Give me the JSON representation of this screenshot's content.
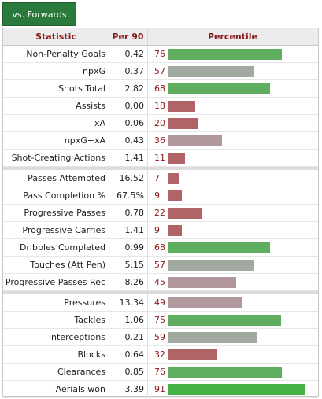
{
  "tab": {
    "label": "vs. Forwards"
  },
  "header": {
    "statistic": "Statistic",
    "per90": "Per 90",
    "percentile": "Percentile"
  },
  "colors": {
    "high": "#5fad5f",
    "mid": "#a2a9a0",
    "low": "#b06468",
    "midlow": "#b0989c"
  },
  "groups": [
    {
      "rows": [
        {
          "stat": "Non-Penalty Goals",
          "per90": "0.42",
          "pct": "76"
        },
        {
          "stat": "npxG",
          "per90": "0.37",
          "pct": "57"
        },
        {
          "stat": "Shots Total",
          "per90": "2.82",
          "pct": "68"
        },
        {
          "stat": "Assists",
          "per90": "0.00",
          "pct": "18"
        },
        {
          "stat": "xA",
          "per90": "0.06",
          "pct": "20"
        },
        {
          "stat": "npxG+xA",
          "per90": "0.43",
          "pct": "36"
        },
        {
          "stat": "Shot-Creating Actions",
          "per90": "1.41",
          "pct": "11"
        }
      ]
    },
    {
      "rows": [
        {
          "stat": "Passes Attempted",
          "per90": "16.52",
          "pct": "7"
        },
        {
          "stat": "Pass Completion %",
          "per90": "67.5%",
          "pct": "9"
        },
        {
          "stat": "Progressive Passes",
          "per90": "0.78",
          "pct": "22"
        },
        {
          "stat": "Progressive Carries",
          "per90": "1.41",
          "pct": "9"
        },
        {
          "stat": "Dribbles Completed",
          "per90": "0.99",
          "pct": "68"
        },
        {
          "stat": "Touches (Att Pen)",
          "per90": "5.15",
          "pct": "57"
        },
        {
          "stat": "Progressive Passes Rec",
          "per90": "8.26",
          "pct": "45"
        }
      ]
    },
    {
      "rows": [
        {
          "stat": "Pressures",
          "per90": "13.34",
          "pct": "49"
        },
        {
          "stat": "Tackles",
          "per90": "1.06",
          "pct": "75"
        },
        {
          "stat": "Interceptions",
          "per90": "0.21",
          "pct": "59"
        },
        {
          "stat": "Blocks",
          "per90": "0.64",
          "pct": "32"
        },
        {
          "stat": "Clearances",
          "per90": "0.85",
          "pct": "76"
        },
        {
          "stat": "Aerials won",
          "per90": "3.39",
          "pct": "91"
        }
      ]
    }
  ]
}
